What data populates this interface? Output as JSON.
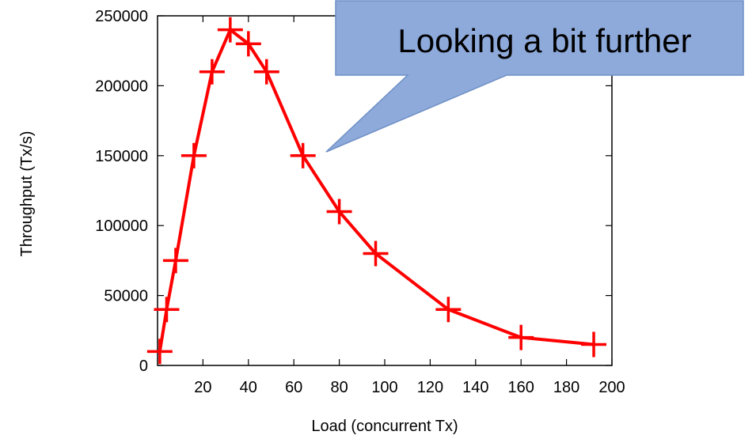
{
  "chart_data": {
    "type": "line",
    "title": "",
    "xlabel": "Load (concurrent Tx)",
    "ylabel": "Throughput (Tx/s)",
    "xlim": [
      0,
      200
    ],
    "ylim": [
      0,
      250000
    ],
    "xticks": [
      "20",
      "40",
      "60",
      "80",
      "100",
      "120",
      "140",
      "160",
      "180",
      "200"
    ],
    "yticks": [
      "0",
      "50000",
      "100000",
      "150000",
      "200000",
      "250000"
    ],
    "grid": false,
    "series": [
      {
        "color": "#ff0000",
        "marker": "plus",
        "x": [
          1,
          4,
          8,
          16,
          24,
          32,
          40,
          48,
          64,
          80,
          96,
          128,
          160,
          192
        ],
        "y": [
          10000,
          40000,
          75000,
          150000,
          210000,
          240000,
          230000,
          210000,
          150000,
          110000,
          80000,
          40000,
          20000,
          15000
        ]
      }
    ]
  },
  "callout": {
    "text": "Looking a bit further",
    "fill": "#8eaadb",
    "stroke": "#6f8fc6"
  }
}
